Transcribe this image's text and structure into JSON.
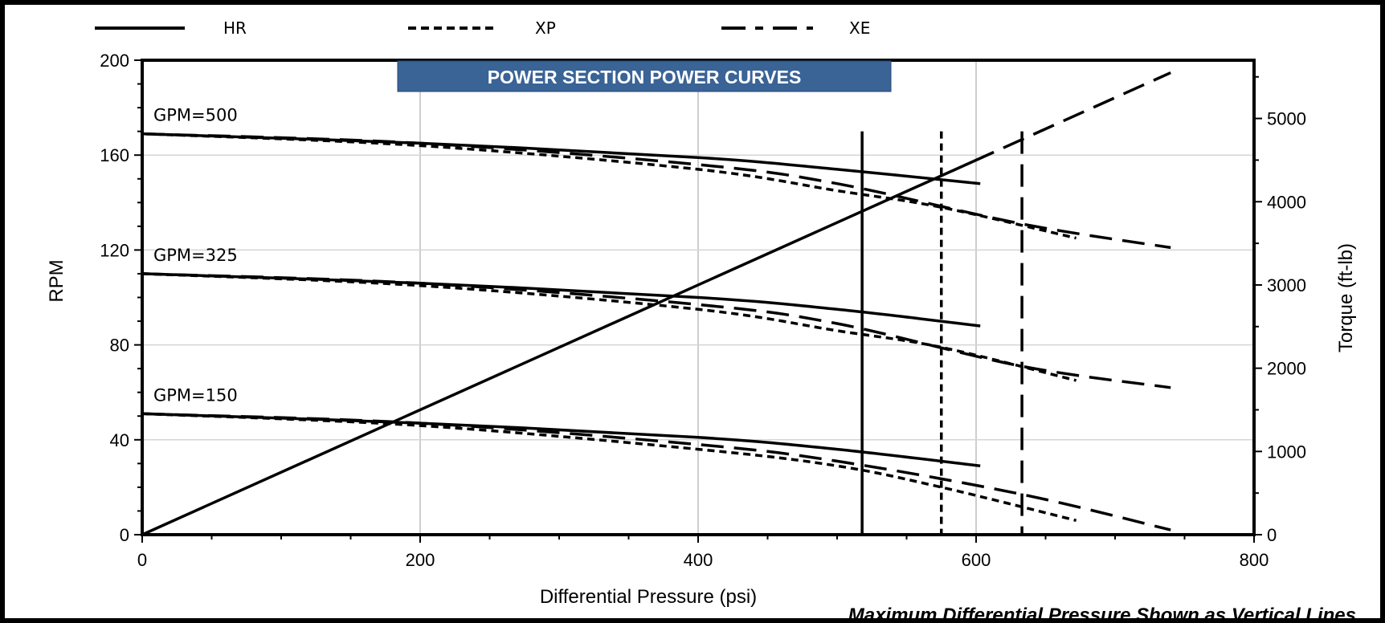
{
  "chart_data": {
    "type": "line",
    "title": "POWER SECTION POWER CURVES",
    "xlabel": "Differential Pressure (psi)",
    "ylabel": "RPM",
    "y2label": "Torque (ft-lb)",
    "xlim": [
      0,
      800
    ],
    "ylim": [
      0,
      200
    ],
    "y2lim": [
      0,
      5700
    ],
    "x_ticks": [
      "0",
      "200",
      "400",
      "600",
      "800"
    ],
    "y_ticks": [
      "0",
      "40",
      "80",
      "120",
      "160",
      "200"
    ],
    "y2_ticks": [
      "0",
      "1000",
      "2000",
      "3000",
      "4000",
      "5000"
    ],
    "grid": "vertical and horizontal major gridlines",
    "legend": {
      "position": "top",
      "entries": [
        {
          "name": "HR",
          "style": "solid"
        },
        {
          "name": "XP",
          "style": "short-dash"
        },
        {
          "name": "XE",
          "style": "long-dash"
        }
      ]
    },
    "flow_labels": [
      {
        "text": "GPM=500",
        "flow": 500
      },
      {
        "text": "GPM=325",
        "flow": 325
      },
      {
        "text": "GPM=150",
        "flow": 150
      }
    ],
    "rpm_series": [
      {
        "name": "HR",
        "flow": 500,
        "style": "solid",
        "x": [
          0,
          200,
          400,
          500,
          603
        ],
        "y": [
          169,
          165,
          159,
          154,
          148
        ]
      },
      {
        "name": "XP",
        "flow": 500,
        "style": "short-dash",
        "x": [
          0,
          200,
          400,
          500,
          575,
          672
        ],
        "y": [
          169,
          164,
          154,
          145,
          138,
          125
        ]
      },
      {
        "name": "XE",
        "flow": 500,
        "style": "long-dash",
        "x": [
          0,
          200,
          400,
          500,
          633,
          740
        ],
        "y": [
          169,
          165,
          156,
          148,
          131,
          121
        ]
      },
      {
        "name": "HR",
        "flow": 325,
        "style": "solid",
        "x": [
          0,
          200,
          400,
          500,
          603
        ],
        "y": [
          110,
          106,
          100,
          95,
          88
        ]
      },
      {
        "name": "XP",
        "flow": 325,
        "style": "short-dash",
        "x": [
          0,
          200,
          400,
          500,
          575,
          672
        ],
        "y": [
          110,
          105,
          95,
          86,
          79,
          65
        ]
      },
      {
        "name": "XE",
        "flow": 325,
        "style": "long-dash",
        "x": [
          0,
          200,
          400,
          500,
          633,
          740
        ],
        "y": [
          110,
          106,
          97,
          89,
          71,
          62
        ]
      },
      {
        "name": "HR",
        "flow": 150,
        "style": "solid",
        "x": [
          0,
          200,
          400,
          500,
          603
        ],
        "y": [
          51,
          47,
          41,
          36,
          29
        ]
      },
      {
        "name": "XP",
        "flow": 150,
        "style": "short-dash",
        "x": [
          0,
          200,
          400,
          500,
          575,
          672
        ],
        "y": [
          51,
          46,
          36,
          29,
          20,
          6
        ]
      },
      {
        "name": "XE",
        "flow": 150,
        "style": "long-dash",
        "x": [
          0,
          200,
          400,
          500,
          633,
          740
        ],
        "y": [
          51,
          47,
          38,
          31,
          17,
          2
        ]
      }
    ],
    "torque_series": {
      "axis": "right",
      "x": [
        0,
        740
      ],
      "y": [
        0,
        5550
      ]
    },
    "max_pressure_lines": [
      {
        "name": "HR",
        "style": "solid",
        "x": 518
      },
      {
        "name": "XP",
        "style": "short-dash",
        "x": 575
      },
      {
        "name": "XE",
        "style": "long-dash",
        "x": 633
      }
    ],
    "note": "Maximum Differential Pressure Shown as Vertical Lines"
  }
}
